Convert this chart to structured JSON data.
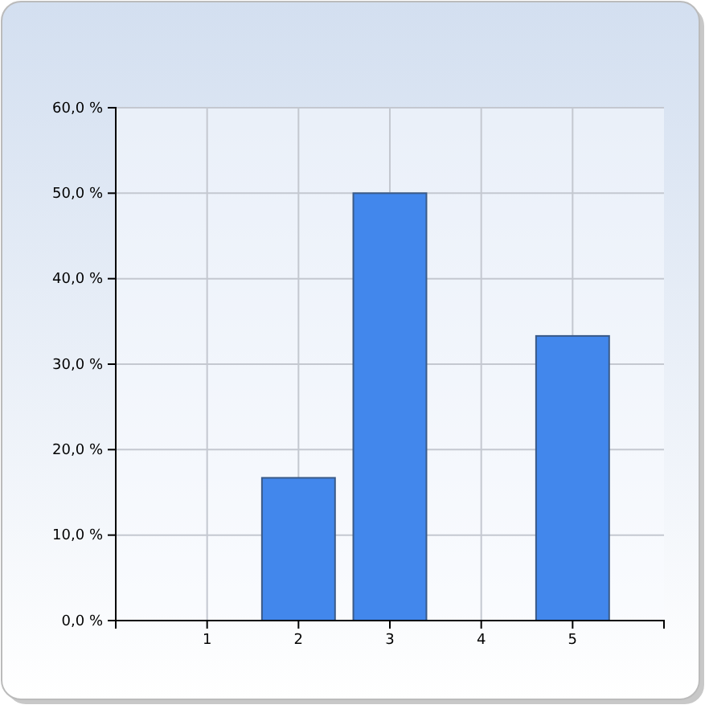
{
  "chart_data": {
    "type": "bar",
    "x": [
      1,
      2,
      3,
      4,
      5
    ],
    "values": [
      0,
      16.7,
      50,
      0,
      33.3
    ],
    "color": "#4287ec",
    "xlim": [
      0,
      6
    ],
    "xticks": [
      1,
      2,
      3,
      4,
      5
    ],
    "ylim": [
      0,
      60
    ],
    "yticks": [
      {
        "value": 0,
        "label": "0,0 %"
      },
      {
        "value": 10,
        "label": "10,0 %"
      },
      {
        "value": 20,
        "label": "20,0 %"
      },
      {
        "value": 30,
        "label": "30,0 %"
      },
      {
        "value": 40,
        "label": "40,0 %"
      },
      {
        "value": 50,
        "label": "50,0 %"
      },
      {
        "value": 60,
        "label": "60,0 %"
      }
    ],
    "grid": true
  }
}
